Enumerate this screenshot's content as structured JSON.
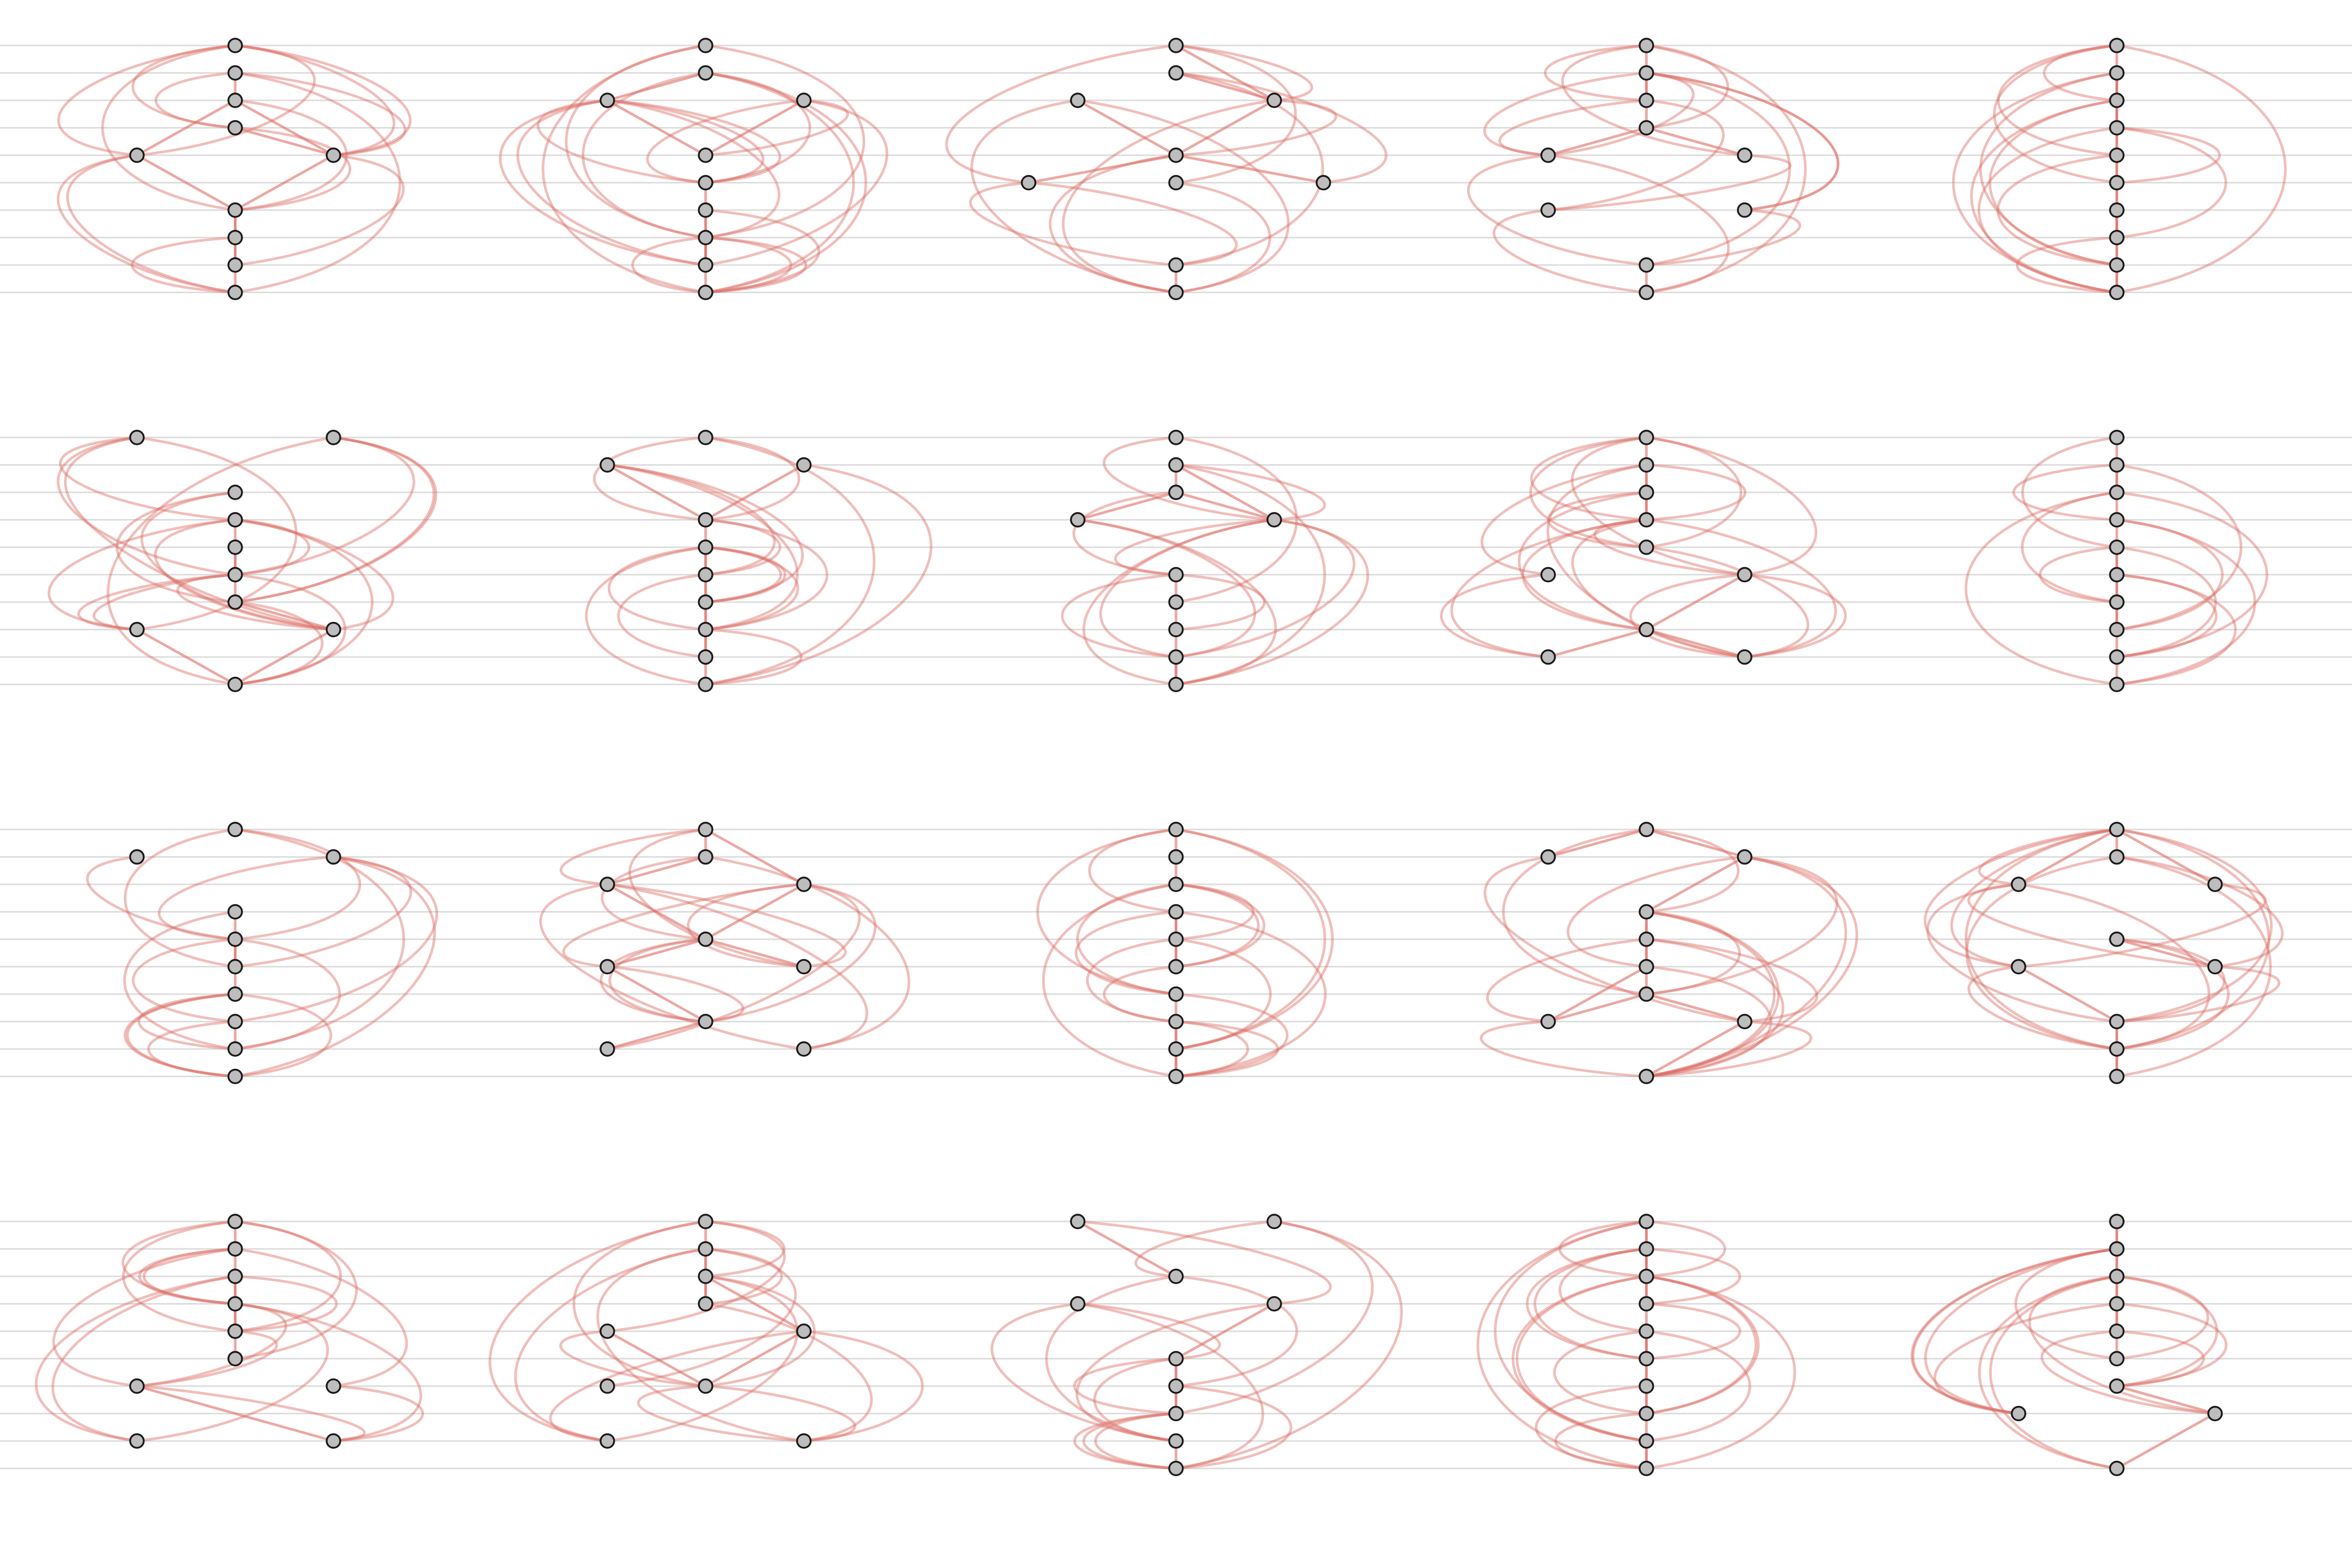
{
  "colors": {
    "background": "#ffffff",
    "guide_line": "#dddddd",
    "edge": "#dc6e66",
    "node_fill": "#bdbdbd",
    "node_stroke": "#1a1a1a"
  },
  "grid": {
    "rows": 4,
    "cols": 5,
    "levels_per_panel": 10
  },
  "panels": [
    [
      {
        "c": 0,
        "r": 0
      },
      {
        "c": 0,
        "r": 1
      },
      {
        "c": 0,
        "r": 2
      },
      {
        "c": 0,
        "r": 3
      },
      {
        "c": -2,
        "r": 4
      },
      {
        "c": 2,
        "r": 4
      },
      {
        "c": 0,
        "r": 6
      },
      {
        "c": 0,
        "r": 7
      },
      {
        "c": 0,
        "r": 8
      },
      {
        "c": 0,
        "r": 9
      }
    ],
    [
      {
        "c": 0,
        "r": 0
      },
      {
        "c": -2,
        "r": 2
      },
      {
        "c": 0,
        "r": 1
      },
      {
        "c": 2,
        "r": 2
      },
      {
        "c": 0,
        "r": 4
      },
      {
        "c": 0,
        "r": 5
      },
      {
        "c": 0,
        "r": 6
      },
      {
        "c": 0,
        "r": 7
      },
      {
        "c": 0,
        "r": 8
      },
      {
        "c": 0,
        "r": 9
      }
    ],
    [
      {
        "c": 0,
        "r": 0
      },
      {
        "c": 0,
        "r": 1
      },
      {
        "c": -2,
        "r": 2
      },
      {
        "c": 2,
        "r": 2
      },
      {
        "c": 0,
        "r": 4
      },
      {
        "c": -3,
        "r": 5
      },
      {
        "c": 0,
        "r": 5
      },
      {
        "c": 3,
        "r": 5
      },
      {
        "c": 0,
        "r": 8
      },
      {
        "c": 0,
        "r": 9
      }
    ],
    [
      {
        "c": 0,
        "r": 0
      },
      {
        "c": 0,
        "r": 1
      },
      {
        "c": 0,
        "r": 2
      },
      {
        "c": 0,
        "r": 3
      },
      {
        "c": -2,
        "r": 4
      },
      {
        "c": 2,
        "r": 4
      },
      {
        "c": -2,
        "r": 6
      },
      {
        "c": 2,
        "r": 6
      },
      {
        "c": 0,
        "r": 8
      },
      {
        "c": 0,
        "r": 9
      }
    ],
    [
      {
        "c": 0,
        "r": 0
      },
      {
        "c": 0,
        "r": 1
      },
      {
        "c": 0,
        "r": 2
      },
      {
        "c": 0,
        "r": 3
      },
      {
        "c": 0,
        "r": 4
      },
      {
        "c": 0,
        "r": 5
      },
      {
        "c": 0,
        "r": 6
      },
      {
        "c": 0,
        "r": 7
      },
      {
        "c": 0,
        "r": 8
      },
      {
        "c": 0,
        "r": 9
      }
    ],
    [
      {
        "c": -2,
        "r": 0
      },
      {
        "c": 2,
        "r": 0
      },
      {
        "c": 0,
        "r": 2
      },
      {
        "c": 0,
        "r": 3
      },
      {
        "c": 0,
        "r": 4
      },
      {
        "c": 0,
        "r": 5
      },
      {
        "c": 0,
        "r": 6
      },
      {
        "c": -2,
        "r": 7
      },
      {
        "c": 2,
        "r": 7
      },
      {
        "c": 0,
        "r": 9
      }
    ],
    [
      {
        "c": 0,
        "r": 0
      },
      {
        "c": -2,
        "r": 1
      },
      {
        "c": 2,
        "r": 1
      },
      {
        "c": 0,
        "r": 3
      },
      {
        "c": 0,
        "r": 4
      },
      {
        "c": 0,
        "r": 5
      },
      {
        "c": 0,
        "r": 6
      },
      {
        "c": 0,
        "r": 7
      },
      {
        "c": 0,
        "r": 8
      },
      {
        "c": 0,
        "r": 9
      }
    ],
    [
      {
        "c": 0,
        "r": 0
      },
      {
        "c": 0,
        "r": 1
      },
      {
        "c": 0,
        "r": 2
      },
      {
        "c": -2,
        "r": 3
      },
      {
        "c": 2,
        "r": 3
      },
      {
        "c": 0,
        "r": 5
      },
      {
        "c": 0,
        "r": 6
      },
      {
        "c": 0,
        "r": 7
      },
      {
        "c": 0,
        "r": 8
      },
      {
        "c": 0,
        "r": 9
      }
    ],
    [
      {
        "c": 0,
        "r": 0
      },
      {
        "c": 0,
        "r": 1
      },
      {
        "c": 0,
        "r": 2
      },
      {
        "c": 0,
        "r": 3
      },
      {
        "c": 0,
        "r": 4
      },
      {
        "c": -2,
        "r": 5
      },
      {
        "c": 2,
        "r": 5
      },
      {
        "c": 0,
        "r": 7
      },
      {
        "c": -2,
        "r": 8
      },
      {
        "c": 2,
        "r": 8
      }
    ],
    [
      {
        "c": 0,
        "r": 0
      },
      {
        "c": 0,
        "r": 1
      },
      {
        "c": 0,
        "r": 2
      },
      {
        "c": 0,
        "r": 3
      },
      {
        "c": 0,
        "r": 4
      },
      {
        "c": 0,
        "r": 5
      },
      {
        "c": 0,
        "r": 6
      },
      {
        "c": 0,
        "r": 7
      },
      {
        "c": 0,
        "r": 8
      },
      {
        "c": 0,
        "r": 9
      }
    ],
    [
      {
        "c": 0,
        "r": 0
      },
      {
        "c": -2,
        "r": 1
      },
      {
        "c": 2,
        "r": 1
      },
      {
        "c": 0,
        "r": 3
      },
      {
        "c": 0,
        "r": 4
      },
      {
        "c": 0,
        "r": 5
      },
      {
        "c": 0,
        "r": 6
      },
      {
        "c": 0,
        "r": 7
      },
      {
        "c": 0,
        "r": 8
      },
      {
        "c": 0,
        "r": 9
      }
    ],
    [
      {
        "c": 0,
        "r": 0
      },
      {
        "c": 0,
        "r": 1
      },
      {
        "c": -2,
        "r": 2
      },
      {
        "c": 2,
        "r": 2
      },
      {
        "c": 0,
        "r": 4
      },
      {
        "c": -2,
        "r": 5
      },
      {
        "c": 2,
        "r": 5
      },
      {
        "c": 0,
        "r": 7
      },
      {
        "c": -2,
        "r": 8
      },
      {
        "c": 2,
        "r": 8
      }
    ],
    [
      {
        "c": 0,
        "r": 0
      },
      {
        "c": 0,
        "r": 1
      },
      {
        "c": 0,
        "r": 2
      },
      {
        "c": 0,
        "r": 3
      },
      {
        "c": 0,
        "r": 4
      },
      {
        "c": 0,
        "r": 5
      },
      {
        "c": 0,
        "r": 6
      },
      {
        "c": 0,
        "r": 7
      },
      {
        "c": 0,
        "r": 8
      },
      {
        "c": 0,
        "r": 9
      }
    ],
    [
      {
        "c": 0,
        "r": 0
      },
      {
        "c": -2,
        "r": 1
      },
      {
        "c": 2,
        "r": 1
      },
      {
        "c": 0,
        "r": 3
      },
      {
        "c": 0,
        "r": 4
      },
      {
        "c": 0,
        "r": 5
      },
      {
        "c": 0,
        "r": 6
      },
      {
        "c": -2,
        "r": 7
      },
      {
        "c": 2,
        "r": 7
      },
      {
        "c": 0,
        "r": 9
      }
    ],
    [
      {
        "c": 0,
        "r": 0
      },
      {
        "c": 0,
        "r": 1
      },
      {
        "c": -2,
        "r": 2
      },
      {
        "c": 2,
        "r": 2
      },
      {
        "c": 0,
        "r": 4
      },
      {
        "c": -2,
        "r": 5
      },
      {
        "c": 2,
        "r": 5
      },
      {
        "c": 0,
        "r": 7
      },
      {
        "c": 0,
        "r": 8
      },
      {
        "c": 0,
        "r": 9
      }
    ],
    [
      {
        "c": 0,
        "r": 0
      },
      {
        "c": 0,
        "r": 1
      },
      {
        "c": 0,
        "r": 2
      },
      {
        "c": 0,
        "r": 3
      },
      {
        "c": 0,
        "r": 4
      },
      {
        "c": 0,
        "r": 5
      },
      {
        "c": -2,
        "r": 6
      },
      {
        "c": 2,
        "r": 6
      },
      {
        "c": -2,
        "r": 8
      },
      {
        "c": 2,
        "r": 8
      }
    ],
    [
      {
        "c": 0,
        "r": 0
      },
      {
        "c": 0,
        "r": 1
      },
      {
        "c": 0,
        "r": 2
      },
      {
        "c": 0,
        "r": 3
      },
      {
        "c": -2,
        "r": 4
      },
      {
        "c": 2,
        "r": 4
      },
      {
        "c": 0,
        "r": 6
      },
      {
        "c": -2,
        "r": 6
      },
      {
        "c": -2,
        "r": 8
      },
      {
        "c": 2,
        "r": 8
      }
    ],
    [
      {
        "c": -2,
        "r": 0
      },
      {
        "c": 2,
        "r": 0
      },
      {
        "c": 0,
        "r": 2
      },
      {
        "c": -2,
        "r": 3
      },
      {
        "c": 2,
        "r": 3
      },
      {
        "c": 0,
        "r": 5
      },
      {
        "c": 0,
        "r": 6
      },
      {
        "c": 0,
        "r": 7
      },
      {
        "c": 0,
        "r": 8
      },
      {
        "c": 0,
        "r": 9
      }
    ],
    [
      {
        "c": 0,
        "r": 0
      },
      {
        "c": 0,
        "r": 1
      },
      {
        "c": 0,
        "r": 2
      },
      {
        "c": 0,
        "r": 3
      },
      {
        "c": 0,
        "r": 4
      },
      {
        "c": 0,
        "r": 5
      },
      {
        "c": 0,
        "r": 6
      },
      {
        "c": 0,
        "r": 7
      },
      {
        "c": 0,
        "r": 8
      },
      {
        "c": 0,
        "r": 9
      }
    ],
    [
      {
        "c": 0,
        "r": 0
      },
      {
        "c": 0,
        "r": 1
      },
      {
        "c": 0,
        "r": 2
      },
      {
        "c": 0,
        "r": 3
      },
      {
        "c": 0,
        "r": 4
      },
      {
        "c": 0,
        "r": 5
      },
      {
        "c": 0,
        "r": 6
      },
      {
        "c": -2,
        "r": 7
      },
      {
        "c": 2,
        "r": 7
      },
      {
        "c": 0,
        "r": 9
      }
    ]
  ]
}
